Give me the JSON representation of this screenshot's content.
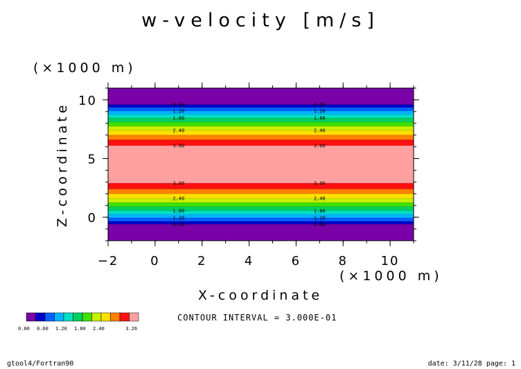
{
  "chart_data": {
    "type": "heatmap",
    "title": "w-velocity [m/s]",
    "xlabel": "X-coordinate",
    "ylabel": "Z-coordinate",
    "x_scale_note": "(×1000 m)",
    "y_scale_note": "(×1000 m)",
    "xlim": [
      -2,
      11
    ],
    "ylim": [
      -2,
      11
    ],
    "x_ticks": [
      "-2",
      "0",
      "2",
      "4",
      "6",
      "8",
      "10"
    ],
    "y_ticks": [
      "0",
      "5",
      "10"
    ],
    "levels": [
      0.0,
      0.3,
      0.6,
      0.9,
      1.2,
      1.5,
      1.8,
      2.1,
      2.4,
      2.7,
      3.0,
      3.26
    ],
    "colors": [
      "#7a00a8",
      "#0000c8",
      "#0060ff",
      "#00b4ff",
      "#00e0c8",
      "#00d060",
      "#40e000",
      "#c8f000",
      "#ffe000",
      "#ff8000",
      "#ff1010",
      "#ffa0a0"
    ],
    "bands_upper": [
      {
        "z_top": 11.0,
        "z_bottom": 9.6,
        "level_index": 0
      },
      {
        "z_top": 9.6,
        "z_bottom": 9.35,
        "level_index": 1
      },
      {
        "z_top": 9.35,
        "z_bottom": 9.05,
        "level_index": 2
      },
      {
        "z_top": 9.05,
        "z_bottom": 8.75,
        "level_index": 3
      },
      {
        "z_top": 8.75,
        "z_bottom": 8.45,
        "level_index": 4
      },
      {
        "z_top": 8.45,
        "z_bottom": 8.1,
        "level_index": 5
      },
      {
        "z_top": 8.1,
        "z_bottom": 7.75,
        "level_index": 6
      },
      {
        "z_top": 7.75,
        "z_bottom": 7.4,
        "level_index": 7
      },
      {
        "z_top": 7.4,
        "z_bottom": 7.0,
        "level_index": 8
      },
      {
        "z_top": 7.0,
        "z_bottom": 6.6,
        "level_index": 9
      },
      {
        "z_top": 6.6,
        "z_bottom": 6.1,
        "level_index": 10
      },
      {
        "z_top": 6.1,
        "z_bottom": 2.9,
        "level_index": 11
      }
    ],
    "bands_lower": [
      {
        "z_top": 2.9,
        "z_bottom": 2.4,
        "level_index": 10
      },
      {
        "z_top": 2.4,
        "z_bottom": 2.0,
        "level_index": 9
      },
      {
        "z_top": 2.0,
        "z_bottom": 1.6,
        "level_index": 8
      },
      {
        "z_top": 1.6,
        "z_bottom": 1.25,
        "level_index": 7
      },
      {
        "z_top": 1.25,
        "z_bottom": 0.9,
        "level_index": 6
      },
      {
        "z_top": 0.9,
        "z_bottom": 0.55,
        "level_index": 5
      },
      {
        "z_top": 0.55,
        "z_bottom": 0.25,
        "level_index": 4
      },
      {
        "z_top": 0.25,
        "z_bottom": -0.05,
        "level_index": 3
      },
      {
        "z_top": -0.05,
        "z_bottom": -0.35,
        "level_index": 2
      },
      {
        "z_top": -0.35,
        "z_bottom": -0.6,
        "level_index": 1
      },
      {
        "z_top": -0.6,
        "z_bottom": -2.0,
        "level_index": 0
      }
    ],
    "contour_labels": [
      {
        "text": "0.60",
        "z": 9.6
      },
      {
        "text": "1.20",
        "z": 9.05
      },
      {
        "text": "1.80",
        "z": 8.45
      },
      {
        "text": "2.40",
        "z": 7.4
      },
      {
        "text": "3.00",
        "z": 6.1
      },
      {
        "text": "3.00",
        "z": 2.9
      },
      {
        "text": "2.40",
        "z": 1.6
      },
      {
        "text": "1.80",
        "z": 0.55
      },
      {
        "text": "1.20",
        "z": -0.05
      },
      {
        "text": "0.60",
        "z": -0.6
      }
    ],
    "contour_label_x": [
      1.0,
      7.0
    ],
    "colorbar_labels": [
      "0.00",
      "0.60",
      "1.20",
      "1.80",
      "2.40",
      "3.26"
    ],
    "contour_interval_text": "CONTOUR INTERVAL = 3.000E-01"
  },
  "footer": {
    "left": "gtool4/Fortran90",
    "right": "date: 3/11/28 page: 1"
  }
}
